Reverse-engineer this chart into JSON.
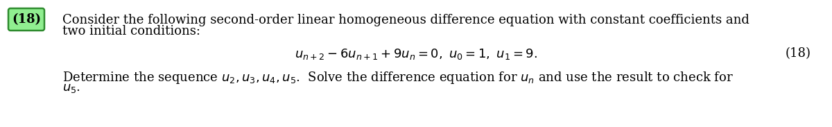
{
  "background_color": "#ffffff",
  "number_label": "18",
  "number_box_color": "#90EE90",
  "number_box_edge": "#2e8b2e",
  "line1": "Consider the following second-order linear homogeneous difference equation with constant coefficients and",
  "line2": "two initial conditions:",
  "equation": "$u_{n+2} - 6u_{n+1} + 9u_n = 0,\\ u_0 = 1,\\ u_1 = 9.$",
  "eq_number": "(18)",
  "line3": "Determine the sequence $u_2, u_3, u_4, u_5$.  Solve the difference equation for $u_n$ and use the result to check for",
  "line4": "$u_5$.",
  "font_size": 13.0,
  "fig_width": 12.0,
  "fig_height": 1.83
}
